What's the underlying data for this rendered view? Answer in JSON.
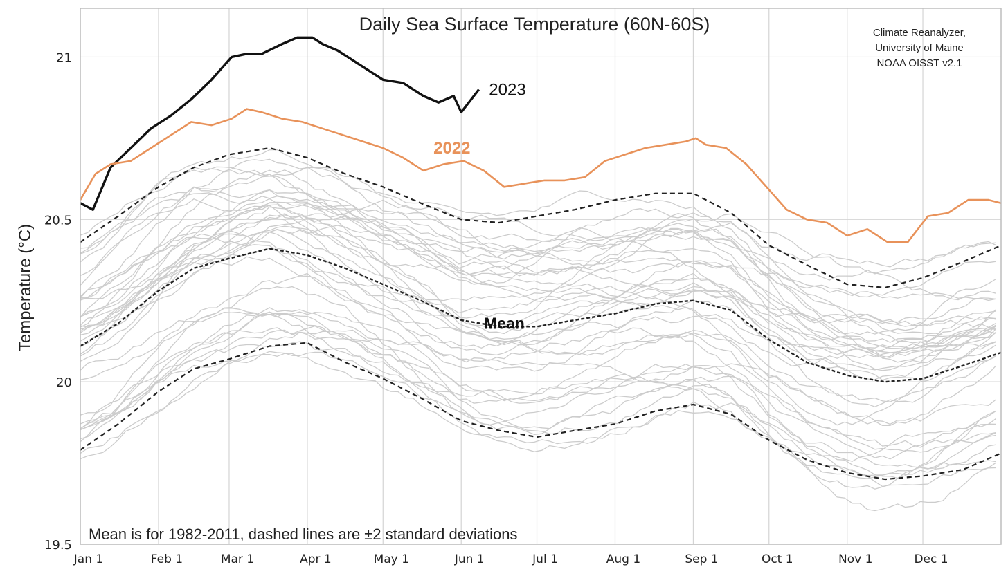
{
  "chart_data": {
    "type": "line",
    "title": "Daily Sea Surface Temperature (60N-60S)",
    "source_lines": [
      "Climate Reanalyzer,",
      "University of Maine",
      "NOAA OISST v2.1"
    ],
    "ylabel": "Temperature (°C)",
    "xlabel": "",
    "xlim": [
      0,
      365
    ],
    "ylim": [
      19.5,
      21.15
    ],
    "yticks": [
      {
        "value": 19.5,
        "label": "19.5"
      },
      {
        "value": 20,
        "label": "20"
      },
      {
        "value": 20.5,
        "label": "20.5"
      },
      {
        "value": 21,
        "label": "21"
      }
    ],
    "xticks": [
      {
        "value": 0,
        "label": "Jan 1"
      },
      {
        "value": 31,
        "label": "Feb 1"
      },
      {
        "value": 59,
        "label": "Mar 1"
      },
      {
        "value": 90,
        "label": "Apr 1"
      },
      {
        "value": 120,
        "label": "May 1"
      },
      {
        "value": 151,
        "label": "Jun 1"
      },
      {
        "value": 181,
        "label": "Jul 1"
      },
      {
        "value": 212,
        "label": "Aug 1"
      },
      {
        "value": 243,
        "label": "Sep 1"
      },
      {
        "value": 273,
        "label": "Oct 1"
      },
      {
        "value": 304,
        "label": "Nov 1"
      },
      {
        "value": 334,
        "label": "Dec 1"
      }
    ],
    "grid": true,
    "note": "Mean is for 1982-2011, dashed lines are ±2 standard deviations",
    "colors": {
      "y2023": "#111111",
      "y2022": "#e8925a",
      "mean": "#222222",
      "background_years": "#cccccc",
      "grid": "#d4d4d4"
    },
    "series": [
      {
        "name": "2023",
        "style": "solid",
        "x": [
          0,
          5,
          12,
          20,
          28,
          36,
          44,
          52,
          60,
          66,
          72,
          80,
          86,
          92,
          96,
          102,
          110,
          120,
          128,
          136,
          142,
          148,
          151,
          154,
          158
        ],
        "y": [
          20.55,
          20.53,
          20.66,
          20.72,
          20.78,
          20.82,
          20.87,
          20.93,
          21.0,
          21.01,
          21.01,
          21.04,
          21.06,
          21.06,
          21.04,
          21.02,
          20.98,
          20.93,
          20.92,
          20.88,
          20.86,
          20.88,
          20.83,
          20.86,
          20.9
        ]
      },
      {
        "name": "2022",
        "style": "solid",
        "x": [
          0,
          6,
          12,
          20,
          28,
          36,
          44,
          52,
          60,
          66,
          72,
          80,
          88,
          96,
          104,
          112,
          120,
          128,
          136,
          144,
          152,
          160,
          168,
          176,
          184,
          192,
          200,
          208,
          216,
          224,
          232,
          240,
          244,
          248,
          256,
          264,
          272,
          280,
          288,
          296,
          304,
          312,
          320,
          328,
          336,
          344,
          352,
          360,
          365
        ],
        "y": [
          20.56,
          20.64,
          20.67,
          20.68,
          20.72,
          20.76,
          20.8,
          20.79,
          20.81,
          20.84,
          20.83,
          20.81,
          20.8,
          20.78,
          20.76,
          20.74,
          20.72,
          20.69,
          20.65,
          20.67,
          20.68,
          20.65,
          20.6,
          20.61,
          20.62,
          20.62,
          20.63,
          20.68,
          20.7,
          20.72,
          20.73,
          20.74,
          20.75,
          20.73,
          20.72,
          20.67,
          20.6,
          20.53,
          20.5,
          20.49,
          20.45,
          20.47,
          20.43,
          20.43,
          20.51,
          20.52,
          20.56,
          20.56,
          20.55
        ]
      },
      {
        "name": "Mean",
        "style": "dashed",
        "x": [
          0,
          15,
          31,
          45,
          59,
          75,
          90,
          105,
          120,
          135,
          151,
          166,
          181,
          196,
          212,
          228,
          243,
          258,
          273,
          288,
          304,
          319,
          334,
          350,
          365
        ],
        "y": [
          20.11,
          20.18,
          20.28,
          20.35,
          20.38,
          20.41,
          20.39,
          20.35,
          20.3,
          20.25,
          20.19,
          20.17,
          20.17,
          20.19,
          20.21,
          20.24,
          20.25,
          20.22,
          20.13,
          20.06,
          20.02,
          20.0,
          20.01,
          20.05,
          20.09
        ]
      },
      {
        "style": "dashed",
        "x": [
          0,
          15,
          31,
          45,
          59,
          75,
          90,
          105,
          120,
          135,
          151,
          166,
          181,
          196,
          212,
          228,
          243,
          258,
          273,
          288,
          304,
          319,
          334,
          350,
          365
        ],
        "y": [
          20.43,
          20.51,
          20.6,
          20.66,
          20.7,
          20.72,
          20.69,
          20.64,
          20.6,
          20.55,
          20.5,
          20.49,
          20.51,
          20.53,
          20.56,
          20.58,
          20.58,
          20.52,
          20.42,
          20.36,
          20.3,
          20.29,
          20.32,
          20.37,
          20.42
        ]
      },
      {
        "style": "dashed",
        "x": [
          0,
          15,
          31,
          45,
          59,
          75,
          90,
          105,
          120,
          135,
          151,
          166,
          181,
          196,
          212,
          228,
          243,
          258,
          273,
          288,
          304,
          319,
          334,
          350,
          365
        ],
        "y": [
          19.79,
          19.87,
          19.97,
          20.04,
          20.07,
          20.11,
          20.12,
          20.06,
          20.01,
          19.95,
          19.88,
          19.85,
          19.83,
          19.85,
          19.87,
          19.91,
          19.93,
          19.9,
          19.82,
          19.76,
          19.72,
          19.7,
          19.71,
          19.73,
          19.78
        ]
      }
    ],
    "background_year_count": 40,
    "annotations": [
      {
        "text": "2023",
        "x": 162,
        "y": 20.9
      },
      {
        "text": "2022",
        "x": 140,
        "y": 20.72
      },
      {
        "text": "Mean",
        "x": 160,
        "y": 20.18
      }
    ]
  }
}
